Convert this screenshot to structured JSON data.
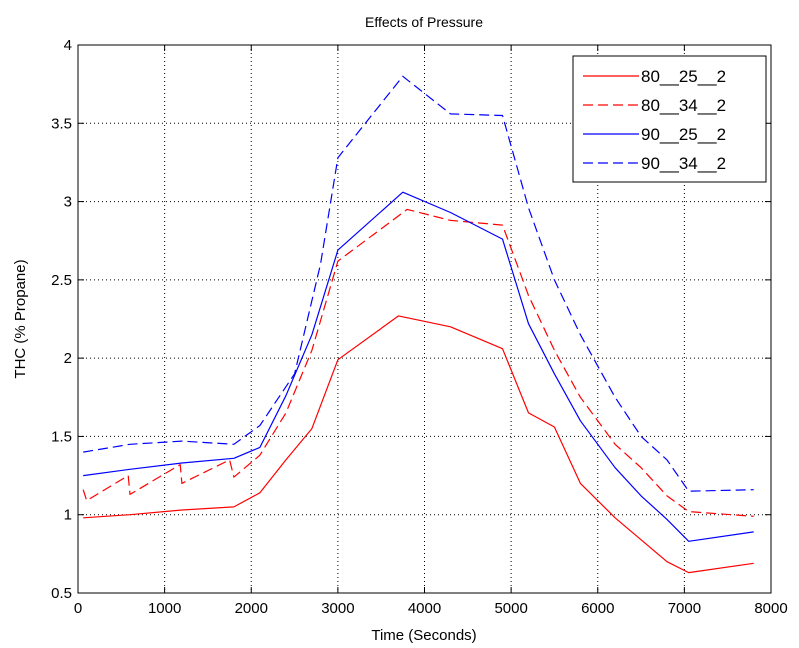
{
  "chart_data": {
    "type": "line",
    "title": "Effects of Pressure",
    "xlabel": "Time (Seconds)",
    "ylabel": "THC (% Propane)",
    "xlim": [
      0,
      8000
    ],
    "ylim": [
      0.5,
      4
    ],
    "xticks": [
      0,
      1000,
      2000,
      3000,
      4000,
      5000,
      6000,
      7000,
      8000
    ],
    "yticks": [
      0.5,
      1,
      1.5,
      2,
      2.5,
      3,
      3.5,
      4
    ],
    "xtick_labels": [
      "0",
      "1000",
      "2000",
      "3000",
      "4000",
      "5000",
      "6000",
      "7000",
      "8000"
    ],
    "ytick_labels": [
      "0.5",
      "1",
      "1.5",
      "2",
      "2.5",
      "3",
      "3.5",
      "4"
    ],
    "grid": true,
    "legend": "top-right",
    "series": [
      {
        "name": "80__25__2",
        "color": "#ff0000",
        "dash": "solid",
        "x": [
          60,
          600,
          1200,
          1800,
          2100,
          2400,
          2700,
          3000,
          3700,
          4300,
          4900,
          5200,
          5500,
          5800,
          6200,
          6500,
          6800,
          7050,
          7800
        ],
        "y": [
          0.98,
          1.0,
          1.03,
          1.05,
          1.14,
          1.35,
          1.55,
          1.99,
          2.27,
          2.2,
          2.06,
          1.65,
          1.56,
          1.2,
          0.98,
          0.84,
          0.7,
          0.63,
          0.69
        ]
      },
      {
        "name": "80__34__2",
        "color": "#ff0000",
        "dash": "dashed",
        "x": [
          60,
          100,
          580,
          600,
          1180,
          1200,
          1750,
          1800,
          2100,
          2400,
          2700,
          3000,
          3800,
          4300,
          4900,
          5200,
          5500,
          5800,
          6200,
          6500,
          6800,
          7050,
          7800
        ],
        "y": [
          1.16,
          1.09,
          1.25,
          1.13,
          1.32,
          1.2,
          1.35,
          1.24,
          1.38,
          1.65,
          2.05,
          2.62,
          2.95,
          2.88,
          2.85,
          2.4,
          2.05,
          1.75,
          1.45,
          1.3,
          1.12,
          1.02,
          0.99
        ]
      },
      {
        "name": "90__25__2",
        "color": "#0000ff",
        "dash": "solid",
        "x": [
          60,
          600,
          1200,
          1800,
          2100,
          2400,
          2700,
          3000,
          3750,
          4300,
          4900,
          5200,
          5500,
          5800,
          6200,
          6500,
          6800,
          7050,
          7800
        ],
        "y": [
          1.25,
          1.29,
          1.33,
          1.36,
          1.43,
          1.76,
          2.15,
          2.69,
          3.06,
          2.93,
          2.76,
          2.22,
          1.9,
          1.6,
          1.3,
          1.12,
          0.97,
          0.83,
          0.89
        ]
      },
      {
        "name": "90__34__2",
        "color": "#0000ff",
        "dash": "dashed",
        "x": [
          60,
          600,
          1200,
          1800,
          2100,
          2500,
          2800,
          3000,
          3750,
          4300,
          4900,
          5200,
          5500,
          5800,
          6200,
          6500,
          6800,
          7050,
          7800
        ],
        "y": [
          1.4,
          1.45,
          1.47,
          1.45,
          1.57,
          1.9,
          2.6,
          3.28,
          3.8,
          3.56,
          3.55,
          2.96,
          2.5,
          2.15,
          1.75,
          1.5,
          1.35,
          1.15,
          1.16
        ]
      }
    ]
  }
}
